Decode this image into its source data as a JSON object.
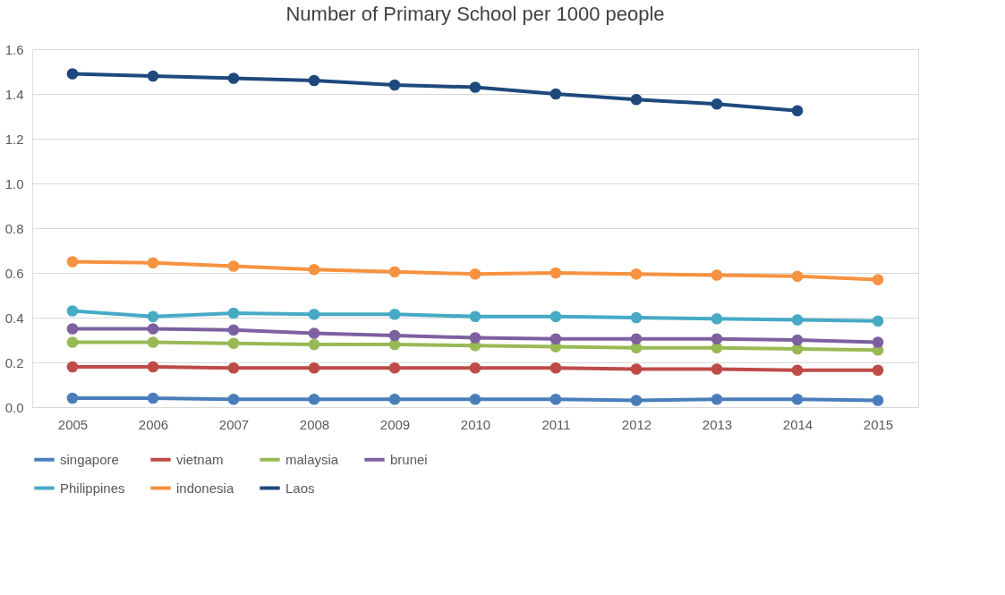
{
  "chart_data": {
    "type": "line",
    "title": "Number of Primary School per 1000 people",
    "categories": [
      "2005",
      "2006",
      "2007",
      "2008",
      "2009",
      "2010",
      "2011",
      "2012",
      "2013",
      "2014",
      "2015"
    ],
    "ylim": [
      0,
      1.6
    ],
    "yticks": [
      {
        "value": 0,
        "label": "0.0"
      },
      {
        "value": 0.2,
        "label": "0.2"
      },
      {
        "value": 0.4,
        "label": "0.4"
      },
      {
        "value": 0.6,
        "label": "0.6"
      },
      {
        "value": 0.8,
        "label": "0.8"
      },
      {
        "value": 1,
        "label": "1.0"
      },
      {
        "value": 1.2,
        "label": "1.2"
      },
      {
        "value": 1.4,
        "label": "1.4"
      },
      {
        "value": 1.6,
        "label": "1.6"
      }
    ],
    "grid": "y",
    "legend": "bottom",
    "marker": "circle",
    "line_style": "solid",
    "series": [
      {
        "name": "singapore",
        "color": "#4a7ebb",
        "values": [
          0.04,
          0.04,
          0.035,
          0.035,
          0.035,
          0.035,
          0.035,
          0.03,
          0.035,
          0.035,
          0.03
        ]
      },
      {
        "name": "vietnam",
        "color": "#be4b48",
        "values": [
          0.18,
          0.18,
          0.175,
          0.175,
          0.175,
          0.175,
          0.175,
          0.17,
          0.17,
          0.165,
          0.165
        ]
      },
      {
        "name": "malaysia",
        "color": "#98b954",
        "values": [
          0.29,
          0.29,
          0.285,
          0.28,
          0.28,
          0.275,
          0.27,
          0.265,
          0.265,
          0.26,
          0.255
        ]
      },
      {
        "name": "brunei",
        "color": "#7d60a0",
        "values": [
          0.35,
          0.35,
          0.345,
          0.33,
          0.32,
          0.31,
          0.305,
          0.305,
          0.305,
          0.3,
          0.29
        ]
      },
      {
        "name": "Philippines",
        "color": "#46aac5",
        "values": [
          0.43,
          0.405,
          0.42,
          0.415,
          0.415,
          0.405,
          0.405,
          0.4,
          0.395,
          0.39,
          0.385
        ]
      },
      {
        "name": "indonesia",
        "color": "#f69240",
        "values": [
          0.65,
          0.645,
          0.63,
          0.615,
          0.605,
          0.595,
          0.6,
          0.595,
          0.59,
          0.585,
          0.57
        ]
      },
      {
        "name": "Laos",
        "color": "#1f497d",
        "values": [
          1.49,
          1.48,
          1.47,
          1.46,
          1.44,
          1.43,
          1.4,
          1.375,
          1.355,
          1.325,
          null
        ]
      }
    ]
  }
}
